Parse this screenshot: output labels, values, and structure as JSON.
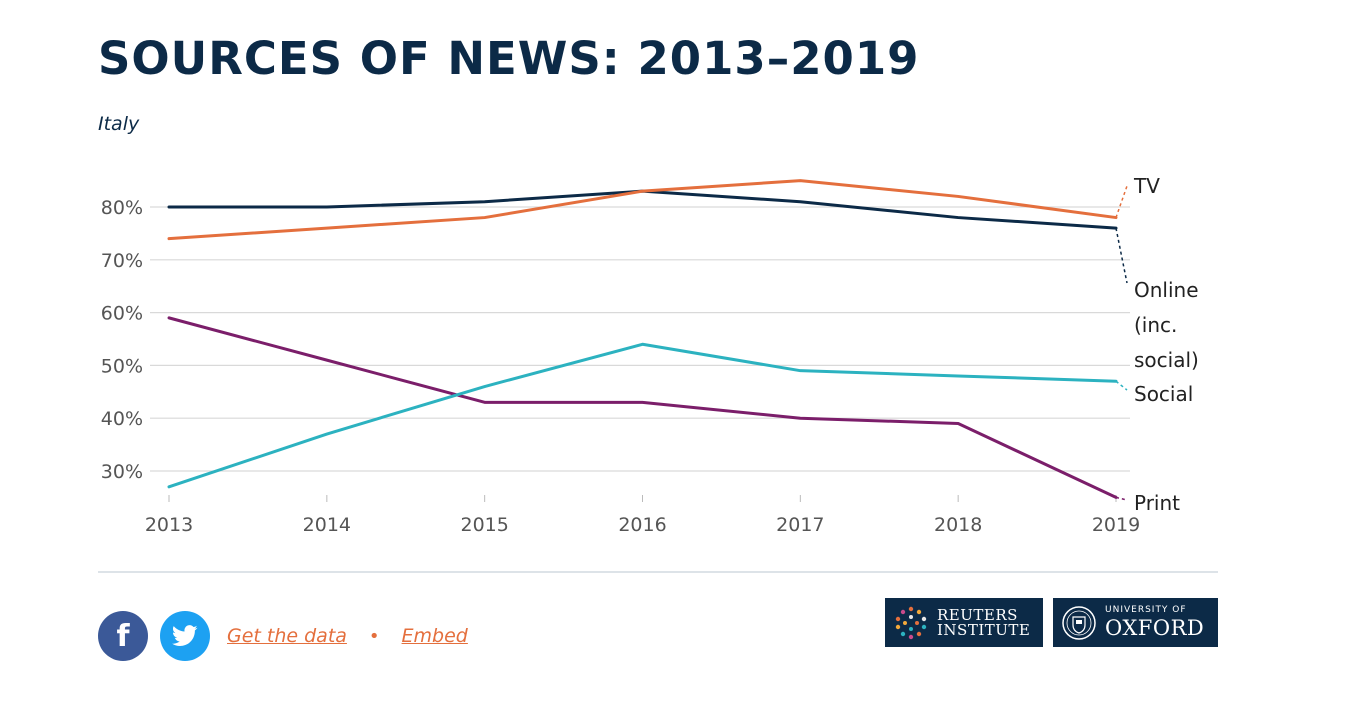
{
  "title": "SOURCES OF NEWS: 2013–2019",
  "subtitle": "Italy",
  "footer": {
    "facebook_glyph": "f",
    "get_data_label": "Get the data",
    "separator": "•",
    "embed_label": "Embed"
  },
  "logos": {
    "reuters_line1": "REUTERS",
    "reuters_line2": "INSTITUTE",
    "oxford_line1": "UNIVERSITY OF",
    "oxford_line2": "OXFORD"
  },
  "colors": {
    "title": "#0c2a47",
    "tv": "#e46f3d",
    "online": "#0c2a47",
    "social": "#2cb2c0",
    "print": "#7b1e6a",
    "grid": "#d9d9d9",
    "logo_bg": "#0c2a47"
  },
  "chart_data": {
    "type": "line",
    "x": [
      2013,
      2014,
      2015,
      2016,
      2017,
      2018,
      2019
    ],
    "series": [
      {
        "name": "TV",
        "values": [
          74,
          76,
          78,
          83,
          85,
          82,
          78
        ]
      },
      {
        "name": "Online (inc. social)",
        "values": [
          80,
          80,
          81,
          83,
          81,
          78,
          76
        ]
      },
      {
        "name": "Social",
        "values": [
          27,
          37,
          46,
          54,
          49,
          48,
          47
        ]
      },
      {
        "name": "Print",
        "values": [
          59,
          51,
          43,
          43,
          40,
          39,
          25
        ]
      }
    ],
    "y_ticks": [
      "30%",
      "40%",
      "50%",
      "60%",
      "70%",
      "80%"
    ],
    "x_ticks": [
      "2013",
      "2014",
      "2015",
      "2016",
      "2017",
      "2018",
      "2019"
    ],
    "ylim": [
      25,
      85
    ],
    "grid": true,
    "legend": "direct labels at right end of lines"
  }
}
